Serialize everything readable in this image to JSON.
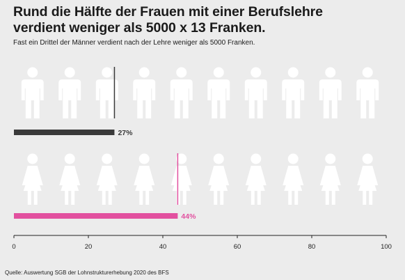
{
  "title_line1": "Rund die Hälfte der Frauen mit einer Berufslehre",
  "title_line2": "verdient weniger als 5000 x 13 Franken.",
  "subtitle": "Fast ein Drittel der Männer verdient nach der Lehre weniger als 5000 Franken.",
  "source": "Quelle: Auswertung SGB der Lohnstrukturerhebung 2020 des BFS",
  "colors": {
    "men": "#3a3a3a",
    "women": "#e2509f",
    "empty": "#ffffff",
    "background": "#ececec"
  },
  "chart_data": {
    "type": "bar",
    "orientation": "horizontal",
    "categories": [
      "Männer",
      "Frauen"
    ],
    "values": [
      27,
      44
    ],
    "value_labels": [
      "27%",
      "44%"
    ],
    "icons": [
      "man-icon",
      "woman-icon"
    ],
    "icons_per_row": 10,
    "xlim": [
      0,
      100
    ],
    "xticks": [
      0,
      20,
      40,
      60,
      80,
      100
    ],
    "xtick_labels": [
      "0",
      "20",
      "40",
      "60",
      "80",
      "100"
    ],
    "grid": false
  }
}
